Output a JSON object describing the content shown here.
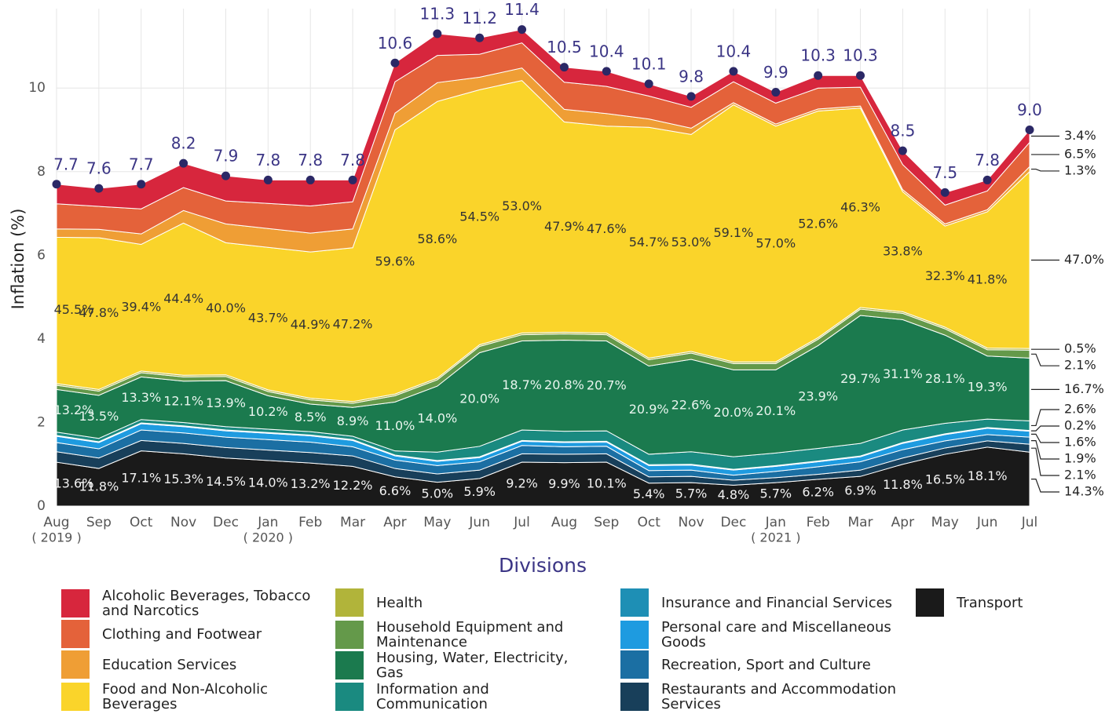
{
  "chart_data": {
    "type": "stacked_area",
    "ylabel": "Inflation (%)",
    "xlabel": "Divisions",
    "categories": [
      "Aug",
      "Sep",
      "Oct",
      "Nov",
      "Dec",
      "Jan",
      "Feb",
      "Mar",
      "Apr",
      "May",
      "Jun",
      "Jul",
      "Aug",
      "Sep",
      "Oct",
      "Nov",
      "Dec",
      "Jan",
      "Feb",
      "Mar",
      "Apr",
      "May",
      "Jun",
      "Jul"
    ],
    "year_labels": [
      "( 2019 )",
      null,
      null,
      null,
      null,
      "( 2020 )",
      null,
      null,
      null,
      null,
      null,
      null,
      null,
      null,
      null,
      null,
      null,
      "( 2021 )",
      null,
      null,
      null,
      null,
      null,
      null
    ],
    "ylim": [
      0,
      11.9
    ],
    "yticks": [
      0,
      2,
      4,
      6,
      8,
      10
    ],
    "grid": true,
    "totals": [
      7.7,
      7.6,
      7.7,
      8.2,
      7.9,
      7.8,
      7.8,
      7.8,
      10.6,
      11.3,
      11.2,
      11.4,
      10.5,
      10.4,
      10.1,
      9.8,
      10.4,
      9.9,
      10.3,
      10.3,
      8.5,
      7.5,
      7.8,
      {
        "value": 9.0,
        "label": "9.0"
      }
    ],
    "series": [
      {
        "name": "Alcoholic Beverages, Tobacco and Narcotics",
        "color": "#d7263d",
        "end_label": "3.4%",
        "values": [
          0.47,
          0.43,
          0.59,
          0.58,
          0.6,
          0.56,
          0.62,
          0.52,
          0.45,
          0.52,
          0.39,
          0.32,
          0.36,
          0.36,
          0.29,
          0.26,
          0.25,
          0.26,
          0.3,
          0.28,
          0.33,
          0.3,
          0.26,
          0.3
        ]
      },
      {
        "name": "Clothing and Footwear",
        "color": "#e4623a",
        "end_label": "6.5%",
        "values": [
          0.6,
          0.55,
          0.6,
          0.55,
          0.55,
          0.6,
          0.65,
          0.65,
          0.75,
          0.65,
          0.55,
          0.6,
          0.65,
          0.65,
          0.55,
          0.5,
          0.5,
          0.5,
          0.5,
          0.45,
          0.6,
          0.45,
          0.45,
          0.58
        ]
      },
      {
        "name": "Education Services",
        "color": "#ef9e35",
        "end_label": "1.3%",
        "values": [
          0.2,
          0.2,
          0.25,
          0.3,
          0.45,
          0.45,
          0.45,
          0.45,
          0.4,
          0.45,
          0.3,
          0.3,
          0.3,
          0.3,
          0.2,
          0.15,
          0.05,
          0.05,
          0.05,
          0.05,
          0.05,
          0.05,
          0.05,
          0.12
        ]
      },
      {
        "name": "Food and Non-Alcoholic Beverages",
        "color": "#fad42a",
        "end_label": "47.0%",
        "label_color": "#333",
        "values": [
          3.5,
          3.63,
          3.03,
          3.64,
          3.16,
          3.41,
          3.5,
          3.68,
          6.32,
          6.62,
          6.1,
          6.04,
          5.03,
          4.95,
          5.52,
          5.19,
          6.15,
          5.64,
          5.42,
          4.77,
          2.87,
          2.42,
          3.26,
          4.23
        ],
        "share_labels": [
          "45.5%",
          "47.8%",
          "39.4%",
          "44.4%",
          "40.0%",
          "43.7%",
          "44.9%",
          "47.2%",
          "59.6%",
          "58.6%",
          "54.5%",
          "53.0%",
          "47.9%",
          "47.6%",
          "54.7%",
          "53.0%",
          "59.1%",
          "57.0%",
          "52.6%",
          "46.3%",
          "33.8%",
          "32.3%",
          "41.8%",
          null
        ]
      },
      {
        "name": "Health",
        "color": "#b1b43a",
        "end_label": "0.5%",
        "values": [
          0.04,
          0.04,
          0.04,
          0.04,
          0.04,
          0.04,
          0.04,
          0.04,
          0.04,
          0.04,
          0.04,
          0.04,
          0.04,
          0.04,
          0.04,
          0.04,
          0.04,
          0.04,
          0.04,
          0.04,
          0.04,
          0.04,
          0.04,
          0.04
        ]
      },
      {
        "name": "Household Equipment and Maintenance",
        "color": "#64994a",
        "end_label": "2.1%",
        "values": [
          0.1,
          0.1,
          0.1,
          0.1,
          0.1,
          0.1,
          0.1,
          0.1,
          0.15,
          0.15,
          0.15,
          0.15,
          0.15,
          0.15,
          0.15,
          0.15,
          0.15,
          0.15,
          0.15,
          0.15,
          0.15,
          0.15,
          0.15,
          0.19
        ]
      },
      {
        "name": "Housing, Water, Electricity, Gas",
        "color": "#1b7a4e",
        "end_label": "16.7%",
        "label_color": "#e8f5ee",
        "values": [
          1.02,
          1.03,
          1.02,
          0.99,
          1.1,
          0.8,
          0.66,
          0.69,
          1.17,
          1.58,
          2.24,
          2.13,
          2.18,
          2.15,
          2.11,
          2.21,
          2.08,
          1.99,
          2.46,
          3.06,
          2.64,
          2.11,
          1.51,
          1.5
        ],
        "share_labels": [
          "13.2%",
          "13.5%",
          "13.3%",
          "12.1%",
          "13.9%",
          "10.2%",
          "8.5%",
          "8.9%",
          "11.0%",
          "14.0%",
          "20.0%",
          "18.7%",
          "20.8%",
          "20.7%",
          "20.9%",
          "22.6%",
          "20.0%",
          "20.1%",
          "23.9%",
          "29.7%",
          "31.1%",
          "28.1%",
          "19.3%",
          null
        ]
      },
      {
        "name": "Information and Communication",
        "color": "#1a8a80",
        "end_label": "2.6%",
        "values": [
          0.08,
          0.08,
          0.08,
          0.08,
          0.08,
          0.08,
          0.08,
          0.08,
          0.1,
          0.2,
          0.25,
          0.25,
          0.25,
          0.25,
          0.25,
          0.3,
          0.3,
          0.3,
          0.3,
          0.3,
          0.3,
          0.25,
          0.2,
          0.23
        ]
      },
      {
        "name": "Insurance and Financial Services",
        "color": "#1e8fb5",
        "end_label": "0.2%",
        "values": [
          0.02,
          0.02,
          0.02,
          0.02,
          0.02,
          0.02,
          0.02,
          0.02,
          0.02,
          0.02,
          0.02,
          0.02,
          0.02,
          0.02,
          0.02,
          0.02,
          0.02,
          0.02,
          0.02,
          0.02,
          0.02,
          0.02,
          0.02,
          0.02
        ]
      },
      {
        "name": "Personal care and Miscellaneous Goods",
        "color": "#1e9be0",
        "end_label": "1.6%",
        "values": [
          0.15,
          0.15,
          0.15,
          0.15,
          0.15,
          0.15,
          0.15,
          0.15,
          0.1,
          0.1,
          0.1,
          0.1,
          0.1,
          0.1,
          0.12,
          0.12,
          0.12,
          0.12,
          0.12,
          0.12,
          0.15,
          0.15,
          0.15,
          0.14
        ]
      },
      {
        "name": "Recreation, Sport and Culture",
        "color": "#1b6fa3",
        "end_label": "1.9%",
        "values": [
          0.22,
          0.22,
          0.25,
          0.25,
          0.25,
          0.25,
          0.25,
          0.22,
          0.2,
          0.2,
          0.2,
          0.2,
          0.18,
          0.18,
          0.15,
          0.15,
          0.12,
          0.15,
          0.18,
          0.2,
          0.2,
          0.17,
          0.15,
          0.17
        ]
      },
      {
        "name": "Restaurants and Accommodation Services",
        "color": "#183f5a",
        "end_label": "2.1%",
        "values": [
          0.25,
          0.25,
          0.25,
          0.25,
          0.25,
          0.25,
          0.25,
          0.25,
          0.2,
          0.2,
          0.2,
          0.2,
          0.2,
          0.2,
          0.15,
          0.15,
          0.12,
          0.12,
          0.12,
          0.15,
          0.15,
          0.15,
          0.15,
          0.19
        ]
      },
      {
        "name": "Transport",
        "color": "#1a1a1a",
        "end_label": "14.3%",
        "label_color": "#f2f2f2",
        "values": [
          1.05,
          0.9,
          1.32,
          1.25,
          1.15,
          1.09,
          1.03,
          0.95,
          0.7,
          0.57,
          0.66,
          1.05,
          1.04,
          1.05,
          0.55,
          0.56,
          0.5,
          0.56,
          0.64,
          0.71,
          1.0,
          1.24,
          1.41,
          1.29
        ],
        "share_labels": [
          "13.6%",
          "11.8%",
          "17.1%",
          "15.3%",
          "14.5%",
          "14.0%",
          "13.2%",
          "12.2%",
          "6.6%",
          "5.0%",
          "5.9%",
          "9.2%",
          "9.9%",
          "10.1%",
          "5.4%",
          "5.7%",
          "4.8%",
          "5.7%",
          "6.2%",
          "6.9%",
          "11.8%",
          "16.5%",
          "18.1%",
          null
        ]
      }
    ]
  }
}
